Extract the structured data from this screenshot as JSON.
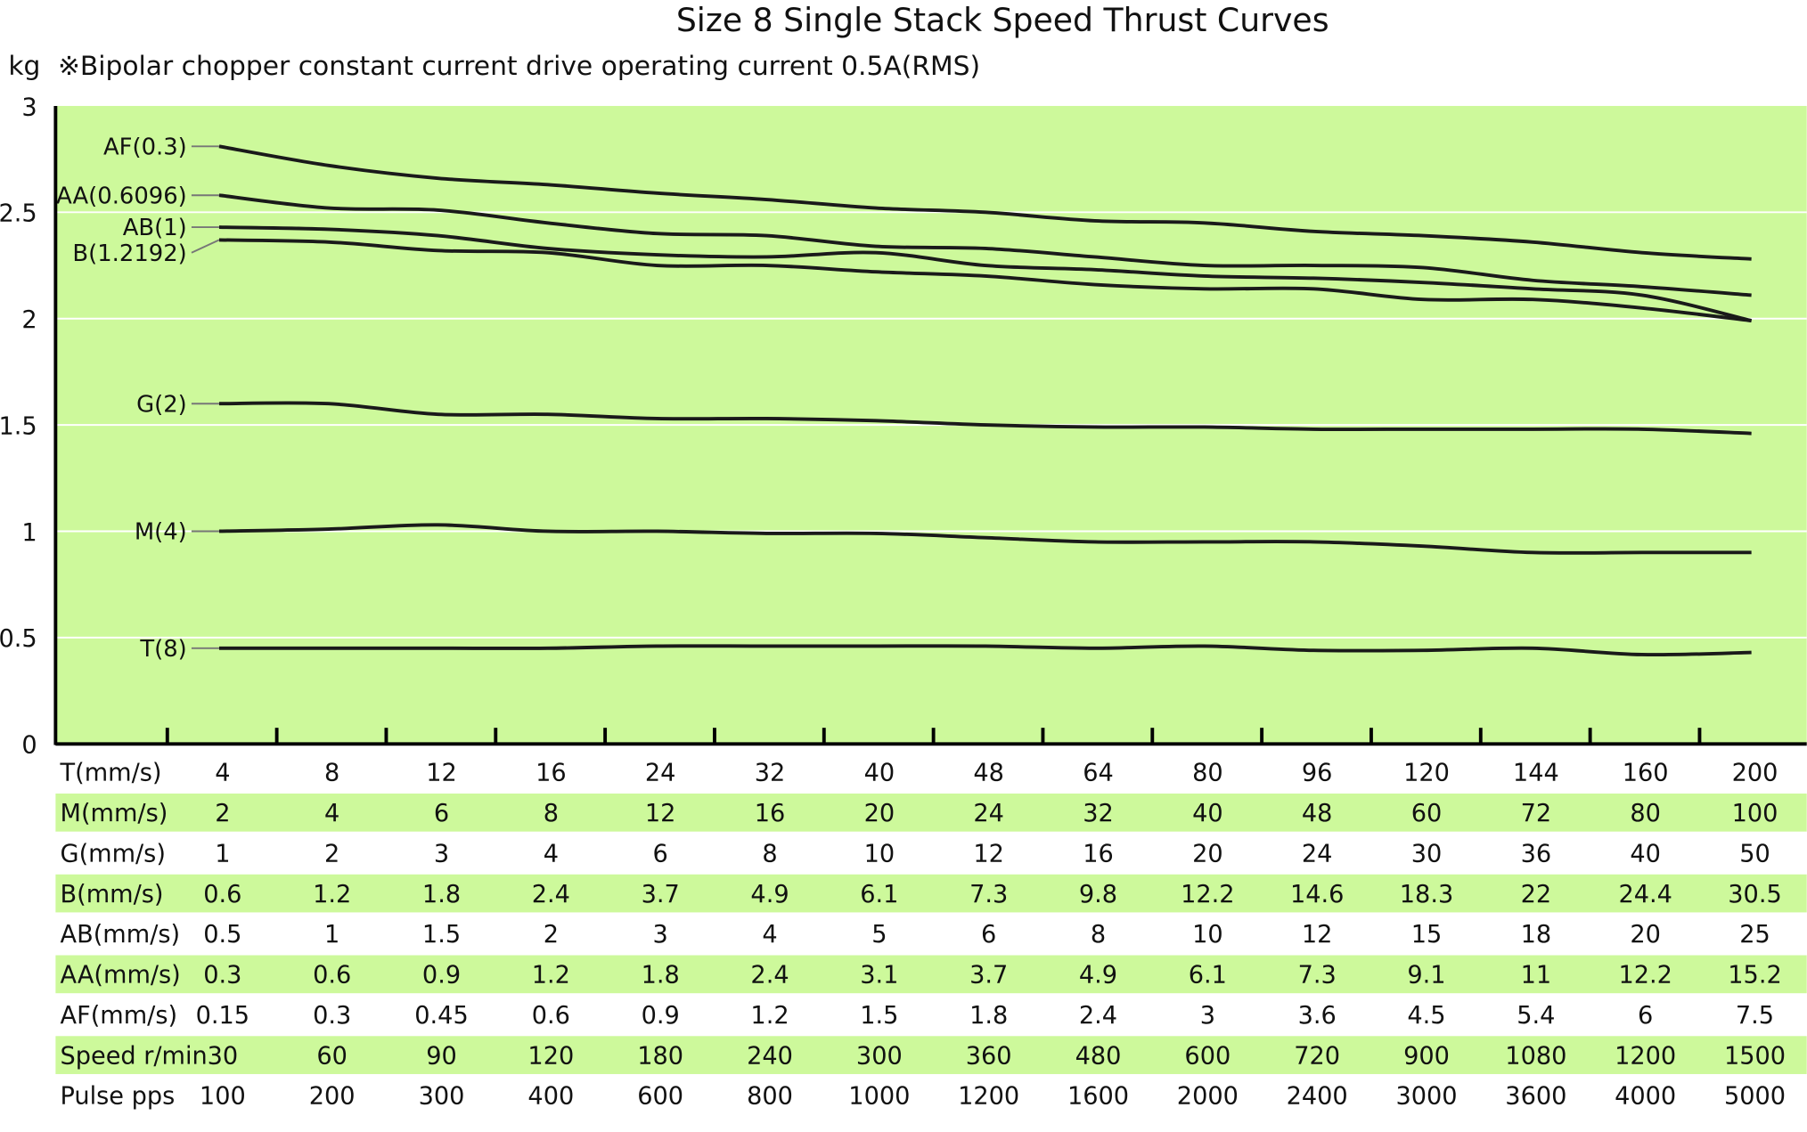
{
  "chart_data": {
    "type": "line",
    "title": "Size 8 Single Stack Speed Thrust Curves",
    "ylabel": "kg",
    "subtitle": "※Bipolar chopper constant current drive operating current 0.5A(RMS)",
    "ylim": [
      0,
      3
    ],
    "yticks": [
      "0",
      "0.5",
      "1",
      "1.5",
      "2",
      "2.5",
      "3"
    ],
    "grid": true,
    "colors": {
      "plot_bg": "#cdf99b",
      "band": "#cdf99b",
      "line": "#1a1a1a",
      "grid": "#ffffff"
    },
    "series": [
      {
        "name": "AF(0.3)",
        "values": [
          2.81,
          2.72,
          2.66,
          2.63,
          2.59,
          2.56,
          2.52,
          2.5,
          2.46,
          2.45,
          2.41,
          2.39,
          2.36,
          2.31,
          2.28
        ]
      },
      {
        "name": "AA(0.6096)",
        "values": [
          2.58,
          2.52,
          2.51,
          2.45,
          2.4,
          2.39,
          2.34,
          2.33,
          2.29,
          2.25,
          2.25,
          2.24,
          2.18,
          2.15,
          2.11
        ]
      },
      {
        "name": "AB(1)",
        "values": [
          2.43,
          2.42,
          2.39,
          2.33,
          2.3,
          2.29,
          2.31,
          2.25,
          2.23,
          2.2,
          2.19,
          2.17,
          2.14,
          2.11,
          1.99
        ]
      },
      {
        "name": "B(1.2192)",
        "values": [
          2.37,
          2.36,
          2.32,
          2.31,
          2.25,
          2.25,
          2.22,
          2.2,
          2.16,
          2.14,
          2.14,
          2.09,
          2.09,
          2.05,
          1.99
        ]
      },
      {
        "name": "G(2)",
        "values": [
          1.6,
          1.6,
          1.55,
          1.55,
          1.53,
          1.53,
          1.52,
          1.5,
          1.49,
          1.49,
          1.48,
          1.48,
          1.48,
          1.48,
          1.46
        ]
      },
      {
        "name": "M(4)",
        "values": [
          1.0,
          1.01,
          1.03,
          1.0,
          1.0,
          0.99,
          0.99,
          0.97,
          0.95,
          0.95,
          0.95,
          0.93,
          0.9,
          0.9,
          0.9
        ]
      },
      {
        "name": "T(8)",
        "values": [
          0.45,
          0.45,
          0.45,
          0.45,
          0.46,
          0.46,
          0.46,
          0.46,
          0.45,
          0.46,
          0.44,
          0.44,
          0.45,
          0.42,
          0.43
        ]
      }
    ],
    "table": [
      {
        "label": "T(mm/s)",
        "values": [
          "4",
          "8",
          "12",
          "16",
          "24",
          "32",
          "40",
          "48",
          "64",
          "80",
          "96",
          "120",
          "144",
          "160",
          "200"
        ]
      },
      {
        "label": "M(mm/s)",
        "values": [
          "2",
          "4",
          "6",
          "8",
          "12",
          "16",
          "20",
          "24",
          "32",
          "40",
          "48",
          "60",
          "72",
          "80",
          "100"
        ]
      },
      {
        "label": "G(mm/s)",
        "values": [
          "1",
          "2",
          "3",
          "4",
          "6",
          "8",
          "10",
          "12",
          "16",
          "20",
          "24",
          "30",
          "36",
          "40",
          "50"
        ]
      },
      {
        "label": "B(mm/s)",
        "values": [
          "0.6",
          "1.2",
          "1.8",
          "2.4",
          "3.7",
          "4.9",
          "6.1",
          "7.3",
          "9.8",
          "12.2",
          "14.6",
          "18.3",
          "22",
          "24.4",
          "30.5"
        ]
      },
      {
        "label": "AB(mm/s)",
        "values": [
          "0.5",
          "1",
          "1.5",
          "2",
          "3",
          "4",
          "5",
          "6",
          "8",
          "10",
          "12",
          "15",
          "18",
          "20",
          "25"
        ]
      },
      {
        "label": "AA(mm/s)",
        "values": [
          "0.3",
          "0.6",
          "0.9",
          "1.2",
          "1.8",
          "2.4",
          "3.1",
          "3.7",
          "4.9",
          "6.1",
          "7.3",
          "9.1",
          "11",
          "12.2",
          "15.2"
        ]
      },
      {
        "label": "AF(mm/s)",
        "values": [
          "0.15",
          "0.3",
          "0.45",
          "0.6",
          "0.9",
          "1.2",
          "1.5",
          "1.8",
          "2.4",
          "3",
          "3.6",
          "4.5",
          "5.4",
          "6",
          "7.5"
        ]
      },
      {
        "label": "Speed r/min",
        "values": [
          "30",
          "60",
          "90",
          "120",
          "180",
          "240",
          "300",
          "360",
          "480",
          "600",
          "720",
          "900",
          "1080",
          "1200",
          "1500"
        ]
      },
      {
        "label": "Pulse pps",
        "values": [
          "100",
          "200",
          "300",
          "400",
          "600",
          "800",
          "1000",
          "1200",
          "1600",
          "2000",
          "2400",
          "3000",
          "3600",
          "4000",
          "5000"
        ]
      }
    ]
  }
}
